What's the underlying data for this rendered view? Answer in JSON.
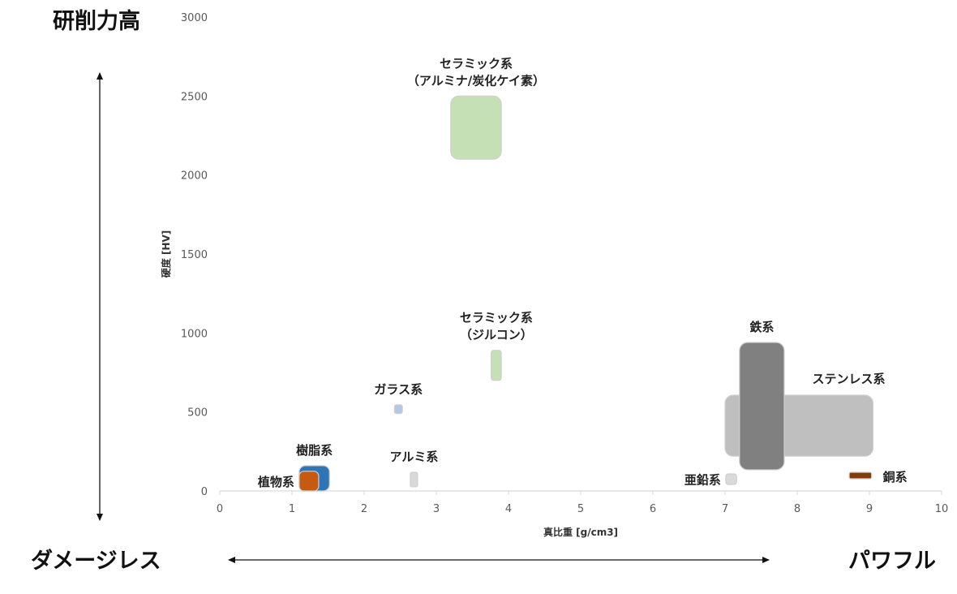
{
  "chart_data": {
    "type": "range-box",
    "xlabel": "真比重 [g/cm3]",
    "ylabel": "硬度 [HV]",
    "xlim": [
      0,
      10
    ],
    "ylim": [
      0,
      3000
    ],
    "x_ticks": [
      "0",
      "1",
      "2",
      "3",
      "4",
      "5",
      "6",
      "7",
      "8",
      "9",
      "10"
    ],
    "y_ticks": [
      "0",
      "500",
      "1000",
      "1500",
      "2000",
      "2500",
      "3000"
    ],
    "grid": false,
    "series": [
      {
        "name": "セラミック系（アルミナ/炭化ケイ素）",
        "label_lines": [
          "セラミック系",
          "（アルミナ/炭化ケイ素）"
        ],
        "label_position": "top",
        "x": [
          3.2,
          3.9
        ],
        "y": [
          2100,
          2500
        ],
        "color": "#c5e0b4"
      },
      {
        "name": "セラミック系（ジルコン）",
        "label_lines": [
          "セラミック系",
          "（ジルコン）"
        ],
        "label_position": "top",
        "x": [
          3.76,
          3.9
        ],
        "y": [
          700,
          890
        ],
        "color": "#c5e0b4"
      },
      {
        "name": "ガラス系",
        "label_lines": [
          "ガラス系"
        ],
        "label_position": "top",
        "x": [
          2.42,
          2.53
        ],
        "y": [
          490,
          545
        ],
        "color": "#b4c7e7"
      },
      {
        "name": "アルミ系",
        "label_lines": [
          "アルミ系"
        ],
        "label_position": "top",
        "x": [
          2.64,
          2.74
        ],
        "y": [
          26,
          118
        ],
        "color": "#d9d9d9"
      },
      {
        "name": "樹脂系",
        "label_lines": [
          "樹脂系"
        ],
        "label_position": "top",
        "x": [
          1.1,
          1.52
        ],
        "y": [
          0,
          160
        ],
        "color": "#2e75b6"
      },
      {
        "name": "植物系",
        "label_lines": [
          "植物系"
        ],
        "label_position": "left",
        "x": [
          1.1,
          1.37
        ],
        "y": [
          0,
          125
        ],
        "color": "#c55a11"
      },
      {
        "name": "ステンレス系",
        "label_lines": [
          "ステンレス系"
        ],
        "label_position": "top-right",
        "x": [
          7.0,
          9.05
        ],
        "y": [
          220,
          606
        ],
        "color": "#bfbfbf"
      },
      {
        "name": "鉄系",
        "label_lines": [
          "鉄系"
        ],
        "label_position": "top",
        "x": [
          7.2,
          7.82
        ],
        "y": [
          134,
          940
        ],
        "color": "#808080"
      },
      {
        "name": "亜鉛系",
        "label_lines": [
          "亜鉛系"
        ],
        "label_position": "left",
        "x": [
          7.01,
          7.16
        ],
        "y": [
          41,
          108
        ],
        "color": "#d9d9d9"
      },
      {
        "name": "銅系",
        "label_lines": [
          "銅系"
        ],
        "label_position": "right",
        "x": [
          8.72,
          9.03
        ],
        "y": [
          77,
          118
        ],
        "color": "#843c0c"
      }
    ]
  },
  "annotations": {
    "top_left": "研削力高",
    "bottom_left": "ダメージレス",
    "bottom_right": "パワフル"
  }
}
